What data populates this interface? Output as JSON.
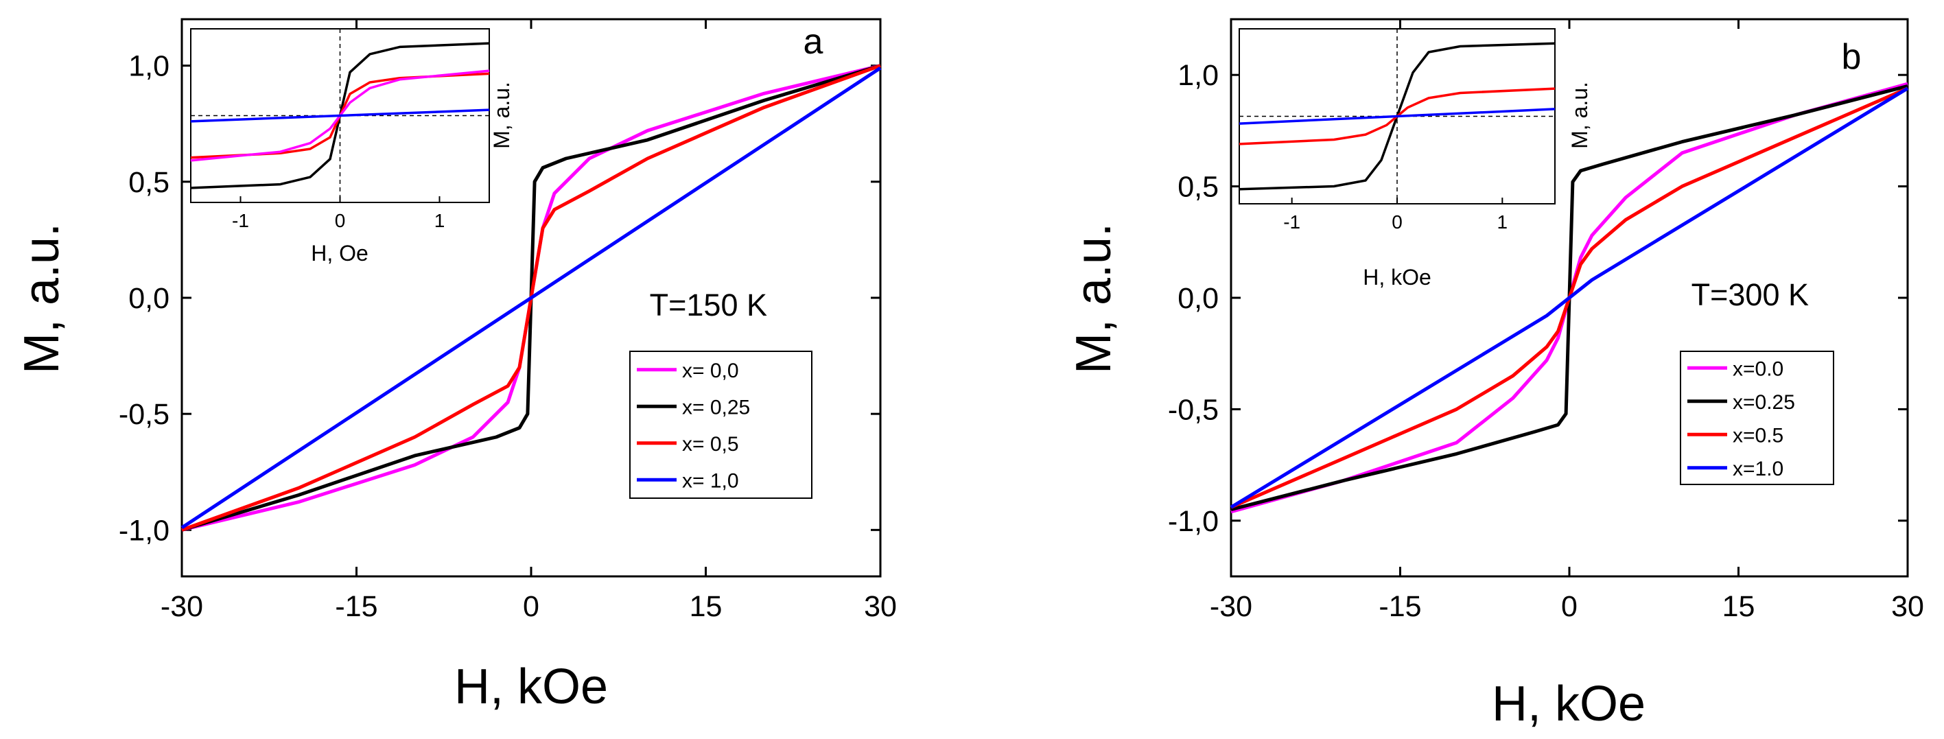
{
  "chart_data": [
    {
      "type": "line",
      "panel_letter": "a",
      "annotation": "T=150 K",
      "xlabel": "H, kOe",
      "ylabel": "M, a.u.",
      "xlim": [
        -30,
        30
      ],
      "ylim": [
        -1.2,
        1.2
      ],
      "x_ticks": [
        -30,
        -15,
        0,
        15,
        30
      ],
      "x_tick_labels": [
        "-30",
        "-15",
        "0",
        "15",
        "30"
      ],
      "y_ticks": [
        -1.0,
        -0.5,
        0.0,
        0.5,
        1.0
      ],
      "y_tick_labels": [
        "-1,0",
        "-0,5",
        "0,0",
        "0,5",
        "1,0"
      ],
      "grid": false,
      "legend_position": "bottom-right",
      "series": [
        {
          "name": "x= 0,0",
          "color": "#ff00ff",
          "x": [
            -30,
            -20,
            -10,
            -5,
            -2,
            -1,
            0,
            1,
            2,
            5,
            10,
            20,
            30
          ],
          "y": [
            -1.0,
            -0.88,
            -0.72,
            -0.6,
            -0.45,
            -0.3,
            0.0,
            0.3,
            0.45,
            0.6,
            0.72,
            0.88,
            1.0
          ]
        },
        {
          "name": "x= 0,25",
          "color": "#000000",
          "x": [
            -30,
            -20,
            -10,
            -3,
            -1,
            -0.3,
            0,
            0.3,
            1,
            3,
            10,
            20,
            30
          ],
          "y": [
            -1.0,
            -0.85,
            -0.68,
            -0.6,
            -0.56,
            -0.5,
            0.0,
            0.5,
            0.56,
            0.6,
            0.68,
            0.85,
            1.0
          ]
        },
        {
          "name": "x= 0,5",
          "color": "#ff0000",
          "x": [
            -30,
            -20,
            -10,
            -5,
            -2,
            -1,
            0,
            1,
            2,
            5,
            10,
            20,
            30
          ],
          "y": [
            -1.0,
            -0.82,
            -0.6,
            -0.46,
            -0.38,
            -0.3,
            0.0,
            0.3,
            0.38,
            0.46,
            0.6,
            0.82,
            1.0
          ]
        },
        {
          "name": "x= 1,0",
          "color": "#0000ff",
          "x": [
            -30,
            30
          ],
          "y": [
            -0.99,
            0.99
          ]
        }
      ],
      "inset": {
        "xlabel": "H, Oe",
        "ylabel": "M, a.u.",
        "xlim": [
          -1.5,
          1.5
        ],
        "ylim": [
          -1.2,
          1.2
        ],
        "x_ticks": [
          -1,
          0,
          1
        ],
        "x_tick_labels": [
          "-1",
          "0",
          "1"
        ],
        "series": [
          {
            "color": "#000000",
            "x": [
              -1.5,
              -0.6,
              -0.3,
              -0.1,
              0.0,
              0.1,
              0.3,
              0.6,
              1.5
            ],
            "y": [
              -1.0,
              -0.95,
              -0.85,
              -0.6,
              0.0,
              0.6,
              0.85,
              0.95,
              1.0
            ]
          },
          {
            "color": "#ff0000",
            "x": [
              -1.5,
              -0.6,
              -0.3,
              -0.1,
              0.0,
              0.1,
              0.3,
              0.6,
              1.5
            ],
            "y": [
              -0.58,
              -0.52,
              -0.46,
              -0.3,
              0.0,
              0.3,
              0.46,
              0.52,
              0.58
            ]
          },
          {
            "color": "#ff00ff",
            "x": [
              -1.5,
              -0.6,
              -0.3,
              -0.1,
              0.0,
              0.1,
              0.3,
              0.6,
              1.5
            ],
            "y": [
              -0.62,
              -0.5,
              -0.38,
              -0.18,
              0.0,
              0.18,
              0.38,
              0.5,
              0.62
            ]
          },
          {
            "color": "#0000ff",
            "x": [
              -1.5,
              1.5
            ],
            "y": [
              -0.08,
              0.08
            ]
          }
        ]
      }
    },
    {
      "type": "line",
      "panel_letter": "b",
      "annotation": "T=300 K",
      "xlabel": "H, kOe",
      "ylabel": "M, a.u.",
      "xlim": [
        -30,
        30
      ],
      "ylim": [
        -1.25,
        1.25
      ],
      "x_ticks": [
        -30,
        -15,
        0,
        15,
        30
      ],
      "x_tick_labels": [
        "-30",
        "-15",
        "0",
        "15",
        "30"
      ],
      "y_ticks": [
        -1.0,
        -0.5,
        0.0,
        0.5,
        1.0
      ],
      "y_tick_labels": [
        "-1,0",
        "-0,5",
        "0,0",
        "0,5",
        "1,0"
      ],
      "grid": false,
      "legend_position": "bottom-right",
      "series": [
        {
          "name": "x=0.0",
          "color": "#ff00ff",
          "x": [
            -30,
            -20,
            -10,
            -5,
            -2,
            -1,
            0,
            1,
            2,
            5,
            10,
            20,
            30
          ],
          "y": [
            -0.96,
            -0.82,
            -0.65,
            -0.45,
            -0.28,
            -0.18,
            0.0,
            0.18,
            0.28,
            0.45,
            0.65,
            0.82,
            0.96
          ]
        },
        {
          "name": "x=0.25",
          "color": "#000000",
          "x": [
            -30,
            -20,
            -10,
            -3,
            -1,
            -0.3,
            0,
            0.3,
            1,
            3,
            10,
            20,
            30
          ],
          "y": [
            -0.95,
            -0.82,
            -0.7,
            -0.6,
            -0.57,
            -0.52,
            0.0,
            0.52,
            0.57,
            0.6,
            0.7,
            0.82,
            0.95
          ]
        },
        {
          "name": "x=0.5",
          "color": "#ff0000",
          "x": [
            -30,
            -20,
            -10,
            -5,
            -2,
            -1,
            0,
            1,
            2,
            5,
            10,
            20,
            30
          ],
          "y": [
            -0.94,
            -0.72,
            -0.5,
            -0.35,
            -0.22,
            -0.15,
            0.0,
            0.15,
            0.22,
            0.35,
            0.5,
            0.72,
            0.94
          ]
        },
        {
          "name": "x=1.0",
          "color": "#0000ff",
          "x": [
            -30,
            -2,
            0,
            2,
            30
          ],
          "y": [
            -0.94,
            -0.08,
            0.0,
            0.08,
            0.94
          ]
        }
      ],
      "inset": {
        "xlabel": "H, kOe",
        "ylabel": "M, a.u.",
        "xlim": [
          -1.5,
          1.5
        ],
        "ylim": [
          -1.2,
          1.2
        ],
        "x_ticks": [
          -1,
          0,
          1
        ],
        "x_tick_labels": [
          "-1",
          "0",
          "1"
        ],
        "series": [
          {
            "color": "#000000",
            "x": [
              -1.5,
              -0.6,
              -0.3,
              -0.15,
              0.0,
              0.15,
              0.3,
              0.6,
              1.5
            ],
            "y": [
              -1.0,
              -0.96,
              -0.88,
              -0.6,
              0.0,
              0.6,
              0.88,
              0.96,
              1.0
            ]
          },
          {
            "color": "#ff0000",
            "x": [
              -1.5,
              -0.6,
              -0.3,
              -0.1,
              0.0,
              0.1,
              0.3,
              0.6,
              1.5
            ],
            "y": [
              -0.38,
              -0.32,
              -0.25,
              -0.12,
              0.0,
              0.12,
              0.25,
              0.32,
              0.38
            ]
          },
          {
            "color": "#0000ff",
            "x": [
              -1.5,
              1.5
            ],
            "y": [
              -0.1,
              0.1
            ]
          }
        ]
      }
    }
  ]
}
